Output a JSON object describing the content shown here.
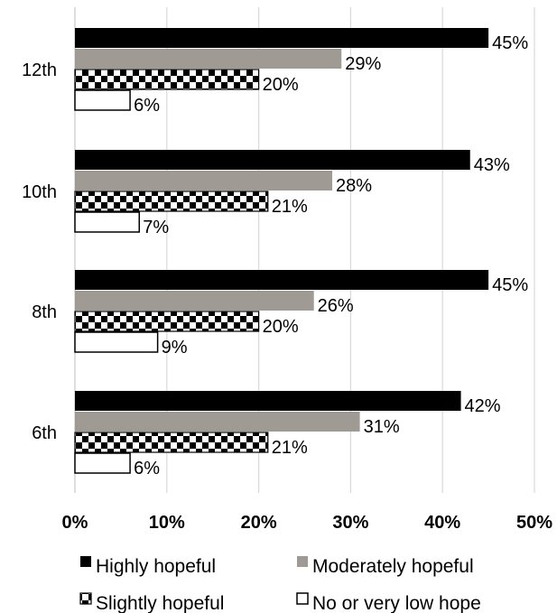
{
  "chart_data": {
    "type": "bar",
    "orientation": "horizontal",
    "categories": [
      "12th",
      "10th",
      "8th",
      "6th"
    ],
    "series": [
      {
        "name": "Highly hopeful",
        "values": [
          45,
          43,
          45,
          42
        ],
        "labels": [
          "45%",
          "43%",
          "45%",
          "42%"
        ],
        "color": "#000000",
        "pattern": "solid"
      },
      {
        "name": "Moderately hopeful",
        "values": [
          29,
          28,
          26,
          31
        ],
        "labels": [
          "29%",
          "28%",
          "26%",
          "31%"
        ],
        "color": "#a09a94",
        "pattern": "solid"
      },
      {
        "name": "Slightly hopeful",
        "values": [
          20,
          21,
          20,
          21
        ],
        "labels": [
          "20%",
          "21%",
          "20%",
          "21%"
        ],
        "color": "#000000",
        "pattern": "checkerboard"
      },
      {
        "name": "No or very low hope",
        "values": [
          6,
          7,
          9,
          6
        ],
        "labels": [
          "6%",
          "7%",
          "9%",
          "6%"
        ],
        "color": "#ffffff",
        "pattern": "outline"
      }
    ],
    "x_ticks": [
      "0%",
      "10%",
      "20%",
      "30%",
      "40%",
      "50%"
    ],
    "xlim": [
      0,
      50
    ],
    "grid": true,
    "legend_position": "bottom",
    "title": "",
    "xlabel": "",
    "ylabel": ""
  }
}
